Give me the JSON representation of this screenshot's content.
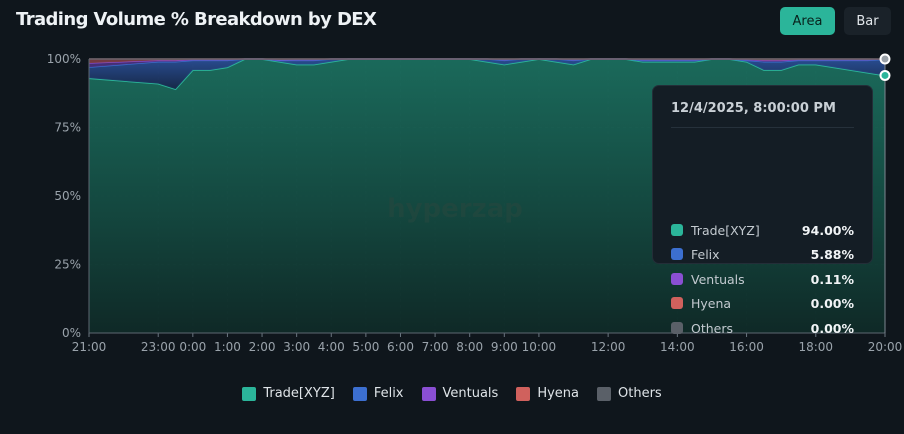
{
  "header": {
    "title": "Trading Volume % Breakdown by DEX"
  },
  "toggle": {
    "area_label": "Area",
    "bar_label": "Bar"
  },
  "watermark": "hyperzap",
  "tooltip": {
    "timestamp": "12/4/2025, 8:00:00 PM",
    "rows": [
      {
        "name": "Trade[XYZ]",
        "value": "94.00%",
        "color": "#2bb59a"
      },
      {
        "name": "Felix",
        "value": "5.88%",
        "color": "#3c6fd0"
      },
      {
        "name": "Ventuals",
        "value": "0.11%",
        "color": "#8a4fd3"
      },
      {
        "name": "Hyena",
        "value": "0.00%",
        "color": "#d0615d"
      },
      {
        "name": "Others",
        "value": "0.00%",
        "color": "#5a6068"
      }
    ]
  },
  "legend": [
    {
      "label": "Trade[XYZ]",
      "color": "#2bb59a"
    },
    {
      "label": "Felix",
      "color": "#3c6fd0"
    },
    {
      "label": "Ventuals",
      "color": "#8a4fd3"
    },
    {
      "label": "Hyena",
      "color": "#d0615d"
    },
    {
      "label": "Others",
      "color": "#5a6068"
    }
  ],
  "chart_data": {
    "type": "area",
    "stacked": true,
    "x": [
      0,
      2,
      2.5,
      3,
      3.5,
      4,
      4.5,
      5,
      5.5,
      6,
      6.5,
      7,
      7.5,
      8,
      8.5,
      9,
      9.5,
      10,
      10.5,
      11,
      11.5,
      12,
      12.5,
      13,
      13.5,
      14,
      14.5,
      15,
      15.5,
      16,
      16.5,
      17,
      17.5,
      18,
      18.5,
      19,
      19.5,
      20,
      20.5,
      21,
      21.5,
      22,
      22.5,
      23
    ],
    "tick_labels": [
      {
        "x": 0,
        "label": "21:00"
      },
      {
        "x": 2,
        "label": "23:00"
      },
      {
        "x": 3,
        "label": "0:00"
      },
      {
        "x": 4,
        "label": "1:00"
      },
      {
        "x": 5,
        "label": "2:00"
      },
      {
        "x": 6,
        "label": "3:00"
      },
      {
        "x": 7,
        "label": "4:00"
      },
      {
        "x": 8,
        "label": "5:00"
      },
      {
        "x": 9,
        "label": "6:00"
      },
      {
        "x": 10,
        "label": "7:00"
      },
      {
        "x": 11,
        "label": "8:00"
      },
      {
        "x": 12,
        "label": "9:00"
      },
      {
        "x": 13,
        "label": "10:00"
      },
      {
        "x": 15,
        "label": "12:00"
      },
      {
        "x": 17,
        "label": "14:00"
      },
      {
        "x": 19,
        "label": "16:00"
      },
      {
        "x": 21,
        "label": "18:00"
      },
      {
        "x": 23,
        "label": "20:00"
      }
    ],
    "series": [
      {
        "name": "Trade[XYZ]",
        "color": "#2bb59a",
        "values": [
          93,
          91,
          89,
          96,
          96,
          97,
          100,
          100,
          99,
          98,
          98,
          99,
          100,
          100,
          100,
          100,
          100,
          100,
          100,
          100,
          99,
          98,
          99,
          100,
          99,
          98,
          100,
          100,
          100,
          99,
          99,
          99,
          99,
          100,
          100,
          99,
          96,
          96,
          98,
          98,
          97,
          96,
          95,
          94
        ]
      },
      {
        "name": "Felix",
        "color": "#3c6fd0",
        "values": [
          4,
          8,
          10,
          3.5,
          3.5,
          2.5,
          0,
          0,
          0.5,
          1.5,
          1.5,
          1,
          0,
          0,
          0,
          0,
          0,
          0,
          0,
          0,
          1,
          1.5,
          1,
          0,
          1,
          1.5,
          0,
          0,
          0,
          0.5,
          0.5,
          0.5,
          0.5,
          0,
          0,
          0.5,
          3,
          3,
          1.5,
          1.5,
          2.5,
          3.5,
          4.5,
          5.88
        ]
      },
      {
        "name": "Ventuals",
        "color": "#8a4fd3",
        "values": [
          1.5,
          0.5,
          0.5,
          0.3,
          0.3,
          0.3,
          0,
          0,
          0.2,
          0.3,
          0.3,
          0,
          0,
          0,
          0,
          0,
          0,
          0,
          0,
          0,
          0,
          0.3,
          0,
          0,
          0,
          0.3,
          0,
          0,
          0,
          0.3,
          0.3,
          0.3,
          0.3,
          0,
          0,
          0.3,
          0.5,
          0.5,
          0.3,
          0.3,
          0.3,
          0.3,
          0.3,
          0.11
        ]
      },
      {
        "name": "Hyena",
        "color": "#d0615d",
        "values": [
          1.5,
          0.5,
          0.5,
          0.2,
          0.2,
          0.2,
          0,
          0,
          0.3,
          0.2,
          0.2,
          0,
          0,
          0,
          0,
          0,
          0,
          0,
          0,
          0,
          0,
          0.2,
          0,
          0,
          0,
          0.2,
          0,
          0,
          0,
          0.2,
          0.2,
          0.2,
          0.2,
          0,
          0,
          0.2,
          0.5,
          0.5,
          0.2,
          0.2,
          0.2,
          0.2,
          0.2,
          0
        ]
      },
      {
        "name": "Others",
        "color": "#5a6068",
        "values": [
          0,
          0,
          0,
          0,
          0,
          0,
          0,
          0,
          0,
          0,
          0,
          0,
          0,
          0,
          0,
          0,
          0,
          0,
          0,
          0,
          0,
          0,
          0,
          0,
          0,
          0,
          0,
          0,
          0,
          0,
          0,
          0,
          0,
          0,
          0,
          0,
          0,
          0,
          0,
          0,
          0,
          0,
          0,
          0
        ]
      }
    ],
    "ylim": [
      0,
      100
    ],
    "y_ticks": [
      0,
      25,
      50,
      75,
      100
    ],
    "y_tick_labels": [
      "0%",
      "25%",
      "50%",
      "75%",
      "100%"
    ],
    "grid": true,
    "legend_position": "bottom-center"
  }
}
